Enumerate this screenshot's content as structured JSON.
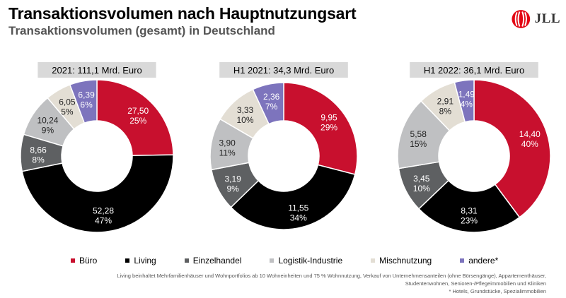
{
  "header": {
    "title": "Transaktionsvolumen nach Hauptnutzungsart",
    "subtitle": "Transaktionsvolumen (gesamt) in Deutschland"
  },
  "logo": {
    "text": "JLL"
  },
  "colors": {
    "buero": "#c8102e",
    "living": "#000000",
    "einzelhandel": "#5e6062",
    "logistik": "#bfc0c2",
    "misch": "#e3ded4",
    "andere": "#7d74bd"
  },
  "chart_data": [
    {
      "type": "pie",
      "title": "2021: 111,1 Mrd. Euro",
      "categories": [
        "Büro",
        "Living",
        "Einzelhandel",
        "Logistik-Industrie",
        "Mischnutzung",
        "andere*"
      ],
      "values": [
        27.5,
        52.28,
        8.66,
        10.24,
        6.05,
        6.39
      ],
      "value_labels": [
        "27,50",
        "52,28",
        "8,66",
        "10,24",
        "6,05",
        "6,39"
      ],
      "percent_labels": [
        "25%",
        "47%",
        "8%",
        "9%",
        "5%",
        "6%"
      ]
    },
    {
      "type": "pie",
      "title": "H1 2021: 34,3 Mrd. Euro",
      "categories": [
        "Büro",
        "Living",
        "Einzelhandel",
        "Logistik-Industrie",
        "Mischnutzung",
        "andere*"
      ],
      "values": [
        9.95,
        11.55,
        3.19,
        3.9,
        3.33,
        2.36
      ],
      "value_labels": [
        "9,95",
        "11,55",
        "3,19",
        "3,90",
        "3,33",
        "2,36"
      ],
      "percent_labels": [
        "29%",
        "34%",
        "9%",
        "11%",
        "10%",
        "7%"
      ]
    },
    {
      "type": "pie",
      "title": "H1 2022: 36,1 Mrd. Euro",
      "categories": [
        "Büro",
        "Living",
        "Einzelhandel",
        "Logistik-Industrie",
        "Mischnutzung",
        "andere*"
      ],
      "values": [
        14.4,
        8.31,
        3.45,
        5.58,
        2.91,
        1.49
      ],
      "value_labels": [
        "14,40",
        "8,31",
        "3,45",
        "5,58",
        "2,91",
        "1,49"
      ],
      "percent_labels": [
        "40%",
        "23%",
        "10%",
        "15%",
        "8%",
        "4%"
      ]
    }
  ],
  "legend": [
    {
      "label": "Büro",
      "color": "#c8102e"
    },
    {
      "label": "Living",
      "color": "#000000"
    },
    {
      "label": "Einzelhandel",
      "color": "#5e6062"
    },
    {
      "label": "Logistik-Industrie",
      "color": "#bfc0c2"
    },
    {
      "label": "Mischnutzung",
      "color": "#e3ded4"
    },
    {
      "label": "andere*",
      "color": "#7d74bd"
    }
  ],
  "footnote": {
    "line1": "Living beinhaltet Mehrfamilienhäuser und Wohnportfolios ab 10 Wohneinheiten und 75 % Wohnnutzung, Verkauf von Unternehmensanteilen (ohne Börsengänge), Appartementhäuser,",
    "line2": "Studentenwohnen, Senioren-/Pflegeimmobilien und Kliniken",
    "line3": "* Hotels, Grundstücke, Spezialimmobilien"
  }
}
